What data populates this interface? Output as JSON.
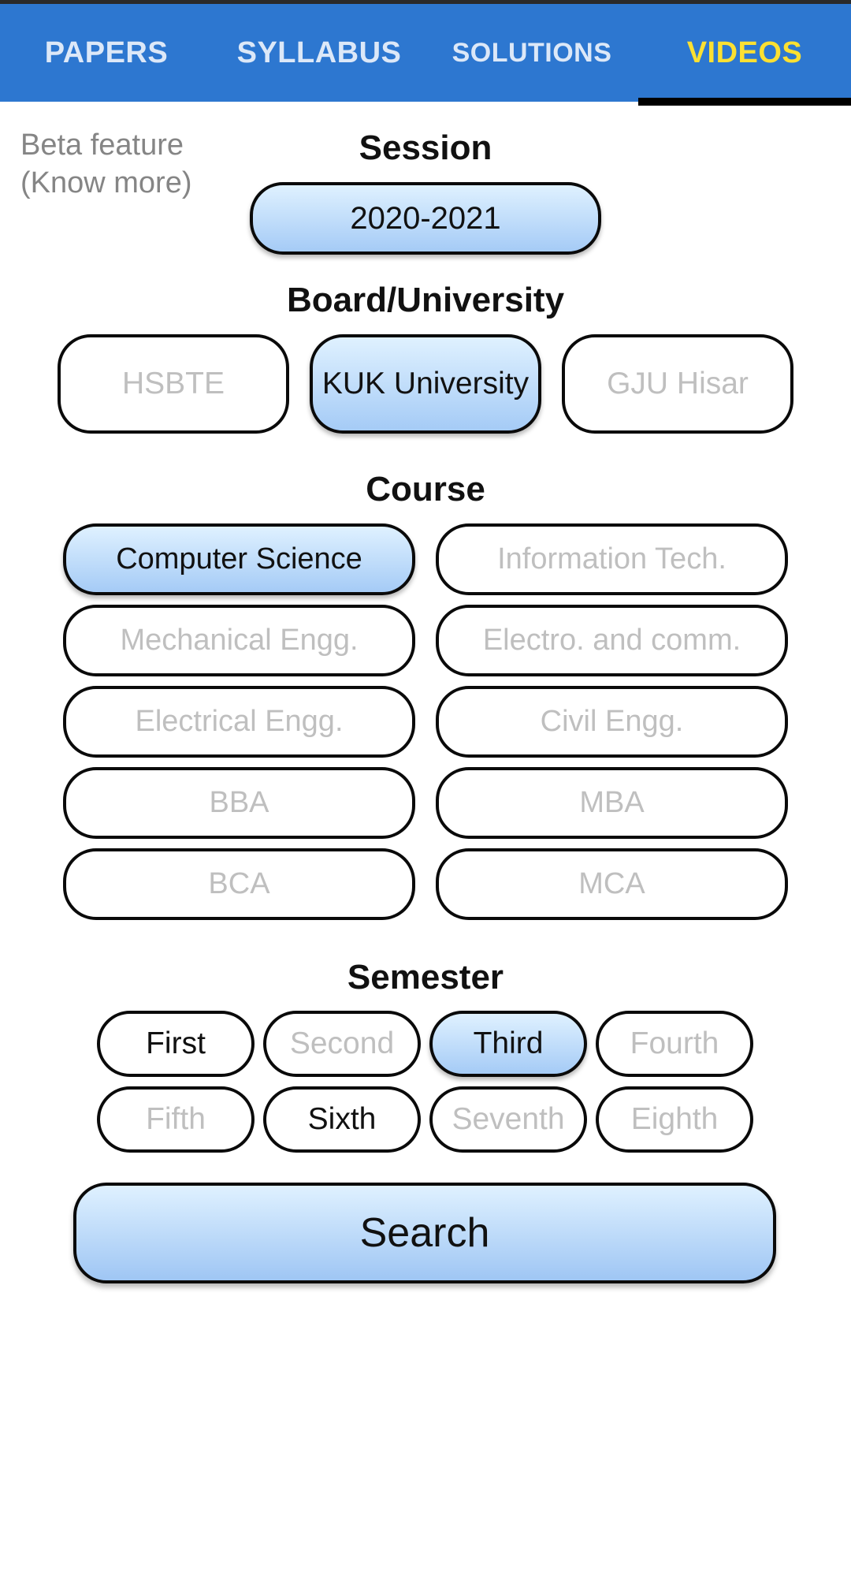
{
  "tabs": {
    "papers": "PAPERS",
    "syllabus": "SYLLABUS",
    "solutions": "SOLUTIONS",
    "videos": "VIDEOS",
    "active": "VIDEOS"
  },
  "beta": {
    "line1": "Beta feature",
    "line2": "(Know more)"
  },
  "session": {
    "title": "Session",
    "value": "2020-2021"
  },
  "board": {
    "title": "Board/University",
    "options": [
      "HSBTE",
      "KUK University",
      "GJU Hisar"
    ],
    "selected": "KUK University"
  },
  "course": {
    "title": "Course",
    "options": [
      "Computer Science",
      "Information Tech.",
      "Mechanical Engg.",
      "Electro. and comm.",
      "Electrical Engg.",
      "Civil Engg.",
      "BBA",
      "MBA",
      "BCA",
      "MCA"
    ],
    "selected": "Computer Science"
  },
  "semester": {
    "title": "Semester",
    "options": [
      "First",
      "Second",
      "Third",
      "Fourth",
      "Fifth",
      "Sixth",
      "Seventh",
      "Eighth"
    ],
    "selected": "Third",
    "available": [
      "First",
      "Third",
      "Sixth"
    ]
  },
  "search": {
    "label": "Search"
  },
  "colors": {
    "tabbar": "#2d77d0",
    "active_tab": "#fbe032",
    "selected_fill_top": "#dff1ff",
    "selected_fill_bottom": "#a5cbf6",
    "disabled_text": "#bfbfbf"
  }
}
